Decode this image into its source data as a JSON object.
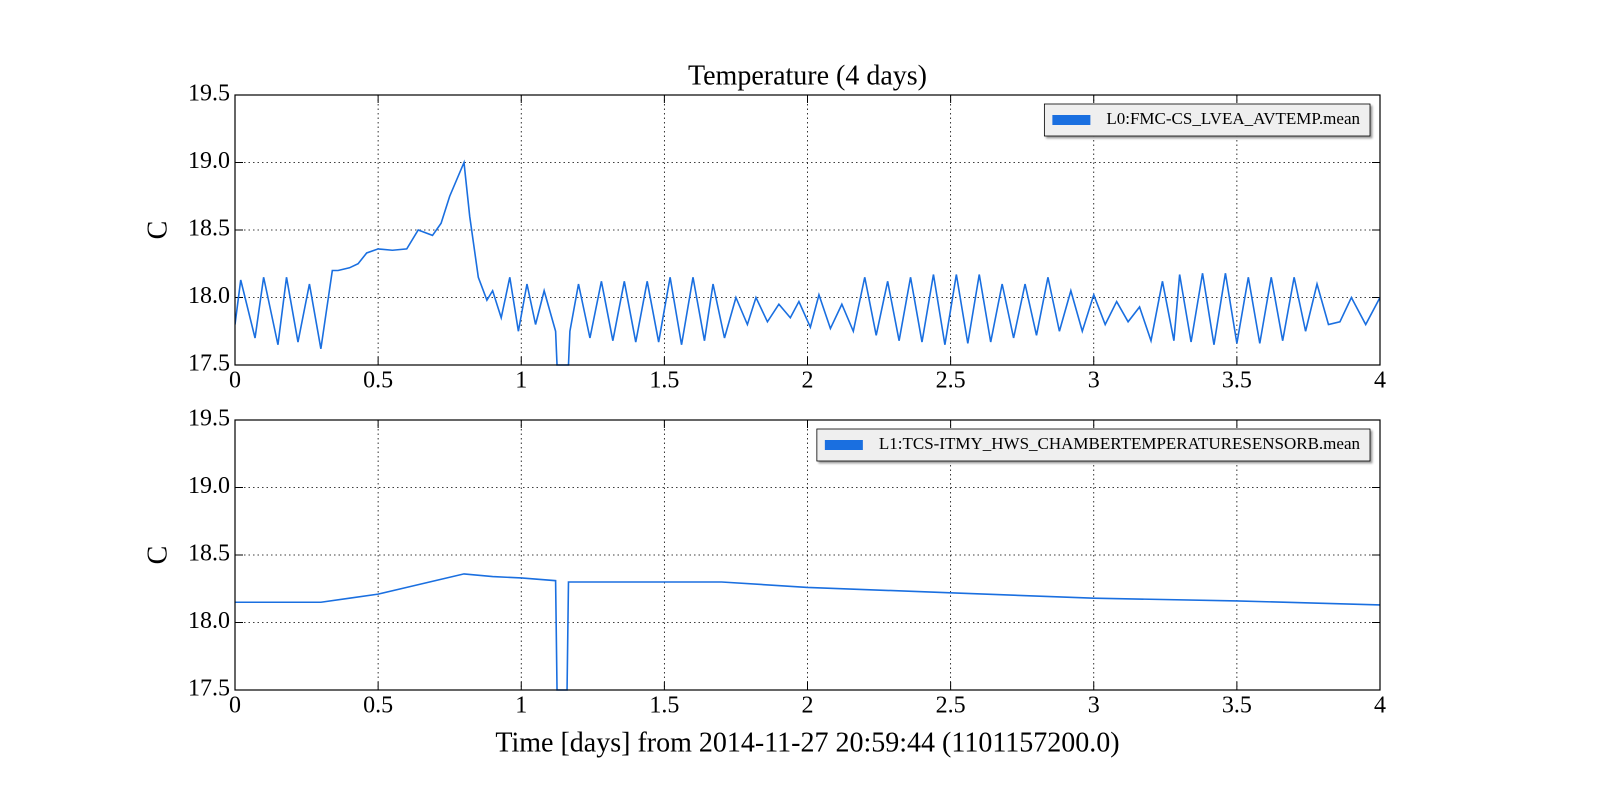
{
  "chart_data": [
    {
      "type": "line",
      "title": "Temperature (4 days)",
      "ylabel": "C",
      "xlim": [
        0,
        4
      ],
      "ylim": [
        17.5,
        19.5
      ],
      "xticks": [
        0,
        0.5,
        1,
        1.5,
        2,
        2.5,
        3,
        3.5,
        4
      ],
      "yticks": [
        17.5,
        {
          "value": 18,
          "label": "18.0"
        },
        18.5,
        {
          "value": 19,
          "label": "19.0"
        },
        19.5
      ],
      "grid": true,
      "legend": "upper right",
      "x": [
        0,
        0.02,
        0.07,
        0.1,
        0.15,
        0.18,
        0.22,
        0.26,
        0.3,
        0.34,
        0.36,
        0.4,
        0.43,
        0.46,
        0.5,
        0.55,
        0.6,
        0.64,
        0.69,
        0.72,
        0.75,
        0.8,
        0.82,
        0.85,
        0.88,
        0.9,
        0.93,
        0.96,
        0.99,
        1.02,
        1.05,
        1.08,
        1.12,
        1.125,
        1.165,
        1.17,
        1.2,
        1.24,
        1.28,
        1.32,
        1.36,
        1.4,
        1.44,
        1.48,
        1.52,
        1.56,
        1.6,
        1.64,
        1.67,
        1.71,
        1.75,
        1.79,
        1.82,
        1.86,
        1.9,
        1.94,
        1.97,
        2.01,
        2.04,
        2.08,
        2.12,
        2.16,
        2.2,
        2.24,
        2.28,
        2.32,
        2.36,
        2.4,
        2.44,
        2.48,
        2.52,
        2.56,
        2.6,
        2.64,
        2.68,
        2.72,
        2.76,
        2.8,
        2.84,
        2.88,
        2.92,
        2.96,
        3.0,
        3.04,
        3.08,
        3.12,
        3.16,
        3.2,
        3.24,
        3.28,
        3.3,
        3.34,
        3.38,
        3.42,
        3.46,
        3.5,
        3.54,
        3.58,
        3.62,
        3.66,
        3.7,
        3.74,
        3.78,
        3.82,
        3.86,
        3.9,
        3.95,
        4.0
      ],
      "series": [
        {
          "name": "L0:FMC-CS_LVEA_AVTEMP.mean",
          "color": "#1a6fe0",
          "values": [
            17.8,
            18.13,
            17.7,
            18.15,
            17.65,
            18.15,
            17.67,
            18.1,
            17.62,
            18.2,
            18.2,
            18.22,
            18.25,
            18.33,
            18.36,
            18.35,
            18.36,
            18.5,
            18.46,
            18.55,
            18.75,
            19.0,
            18.6,
            18.15,
            17.98,
            18.05,
            17.85,
            18.15,
            17.75,
            18.1,
            17.8,
            18.05,
            17.75,
            17.5,
            17.5,
            17.75,
            18.1,
            17.7,
            18.12,
            17.68,
            18.12,
            17.67,
            18.12,
            17.67,
            18.15,
            17.65,
            18.15,
            17.68,
            18.1,
            17.7,
            18.0,
            17.8,
            18.0,
            17.82,
            17.95,
            17.85,
            17.97,
            17.78,
            18.02,
            17.77,
            17.95,
            17.75,
            18.15,
            17.72,
            18.12,
            17.68,
            18.15,
            17.67,
            18.17,
            17.65,
            18.17,
            17.66,
            18.17,
            17.67,
            18.1,
            17.7,
            18.1,
            17.72,
            18.15,
            17.75,
            18.05,
            17.75,
            18.02,
            17.8,
            17.97,
            17.82,
            17.93,
            17.68,
            18.12,
            17.68,
            18.17,
            17.67,
            18.18,
            17.65,
            18.18,
            17.66,
            18.15,
            17.66,
            18.15,
            17.68,
            18.15,
            17.75,
            18.1,
            17.8,
            17.82,
            18.0,
            17.8,
            18.0
          ]
        }
      ]
    },
    {
      "type": "line",
      "ylabel": "C",
      "xlabel": "Time [days] from 2014-11-27 20:59:44 (1101157200.0)",
      "xlim": [
        0,
        4
      ],
      "ylim": [
        17.5,
        19.5
      ],
      "xticks": [
        0,
        0.5,
        1,
        1.5,
        2,
        2.5,
        3,
        3.5,
        4
      ],
      "yticks": [
        17.5,
        {
          "value": 18,
          "label": "18.0"
        },
        18.5,
        {
          "value": 19,
          "label": "19.0"
        },
        19.5
      ],
      "grid": true,
      "legend": "upper right",
      "x": [
        0,
        0.2,
        0.3,
        0.4,
        0.5,
        0.6,
        0.7,
        0.8,
        0.9,
        1.0,
        1.12,
        1.125,
        1.16,
        1.165,
        1.5,
        1.7,
        2.0,
        2.5,
        3.0,
        3.5,
        4.0
      ],
      "series": [
        {
          "name": "L1:TCS-ITMY_HWS_CHAMBERTEMPERATURESENSORB.mean",
          "color": "#1a6fe0",
          "values": [
            18.15,
            18.15,
            18.15,
            18.18,
            18.21,
            18.26,
            18.31,
            18.36,
            18.34,
            18.33,
            18.31,
            17.5,
            17.5,
            18.3,
            18.3,
            18.3,
            18.26,
            18.22,
            18.18,
            18.16,
            18.13
          ]
        }
      ]
    }
  ]
}
